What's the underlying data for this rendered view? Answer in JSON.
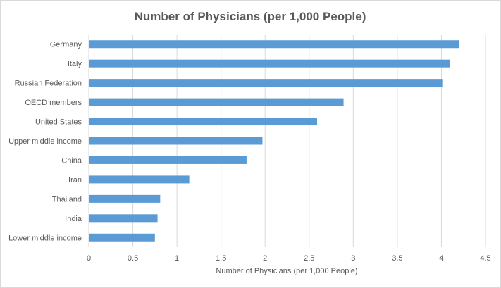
{
  "chart_data": {
    "type": "bar",
    "orientation": "horizontal",
    "title": "Number of Physicians (per 1,000 People)",
    "xlabel": "Number of Physicians (per 1,000 People)",
    "ylabel": "",
    "categories": [
      "Germany",
      "Italy",
      "Russian Federation",
      "OECD members",
      "United States",
      "Upper middle income",
      "China",
      "Iran",
      "Thailand",
      "India",
      "Lower middle income"
    ],
    "values": [
      4.2,
      4.1,
      4.01,
      2.89,
      2.59,
      1.97,
      1.79,
      1.14,
      0.81,
      0.78,
      0.75
    ],
    "xlim": [
      0,
      4.5
    ],
    "xticks": [
      "0",
      "0.5",
      "1",
      "1.5",
      "2",
      "2.5",
      "3",
      "3.5",
      "4",
      "4.5"
    ],
    "grid": "vertical",
    "legend": "none",
    "bar_color": "#5b9bd5"
  }
}
